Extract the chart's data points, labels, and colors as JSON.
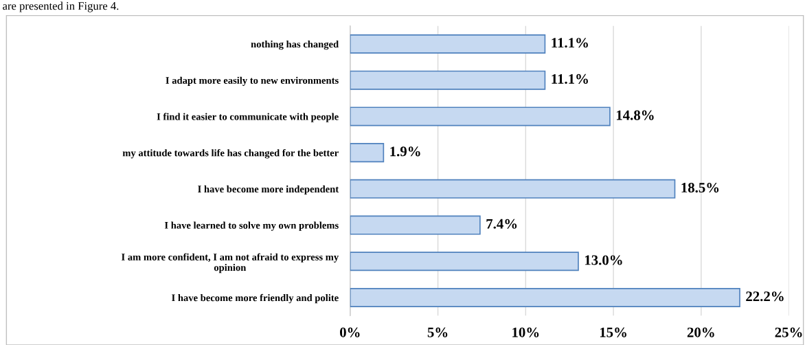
{
  "chart_data": {
    "type": "bar",
    "orientation": "horizontal",
    "categories": [
      "nothing has changed",
      "I adapt more easily to new environments",
      "I find it easier to communicate with people",
      "my attitude towards life has changed for the better",
      "I have become more independent",
      "I have learned to solve my own problems",
      "I am more confident, I am not afraid to express my\nopinion",
      "I have become more friendly and polite"
    ],
    "values": [
      11.1,
      11.1,
      14.8,
      1.9,
      18.5,
      7.4,
      13.0,
      22.2
    ],
    "value_labels": [
      "11.1%",
      "11.1%",
      "14.8%",
      "1.9%",
      "18.5%",
      "7.4%",
      "13.0%",
      "22.2%"
    ],
    "color": "#c6d9f1",
    "xlim": [
      0,
      25
    ],
    "xticks": [
      {
        "value": 0,
        "label": "0%"
      },
      {
        "value": 5,
        "label": "5%"
      },
      {
        "value": 10,
        "label": "10%"
      },
      {
        "value": 15,
        "label": "15%"
      },
      {
        "value": 20,
        "label": "20%"
      },
      {
        "value": 25,
        "label": "25%"
      }
    ],
    "grid": "x",
    "annotations": [
      "are presented in Figure 4."
    ]
  }
}
